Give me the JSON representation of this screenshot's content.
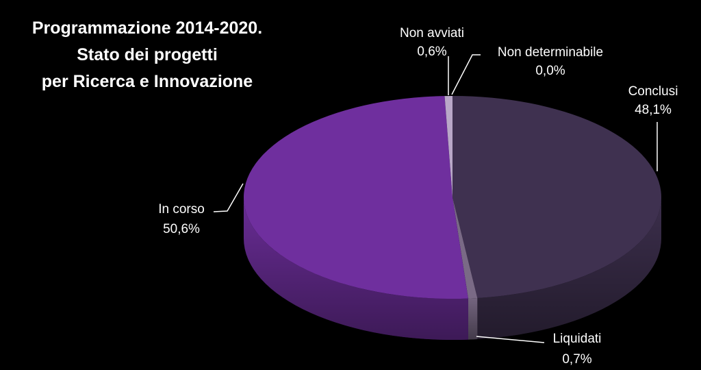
{
  "chart_data": {
    "type": "pie",
    "title_lines": [
      "Programmazione 2014-2020.",
      "Stato dei progetti",
      "per Ricerca e Innovazione"
    ],
    "slices": [
      {
        "name": "Conclusi",
        "value": 48.1,
        "label_value": "48,1%",
        "color": "#3f3150"
      },
      {
        "name": "Liquidati",
        "value": 0.7,
        "label_value": "0,7%",
        "color": "#7a6a86"
      },
      {
        "name": "In corso",
        "value": 50.6,
        "label_value": "50,6%",
        "color": "#6f2f9e"
      },
      {
        "name": "Non avviati",
        "value": 0.6,
        "label_value": "0,6%",
        "color": "#b9a7c8"
      },
      {
        "name": "Non determinabile",
        "value": 0.0,
        "label_value": "0,0%",
        "color": "#cfc4d9"
      }
    ],
    "legend": "none"
  }
}
